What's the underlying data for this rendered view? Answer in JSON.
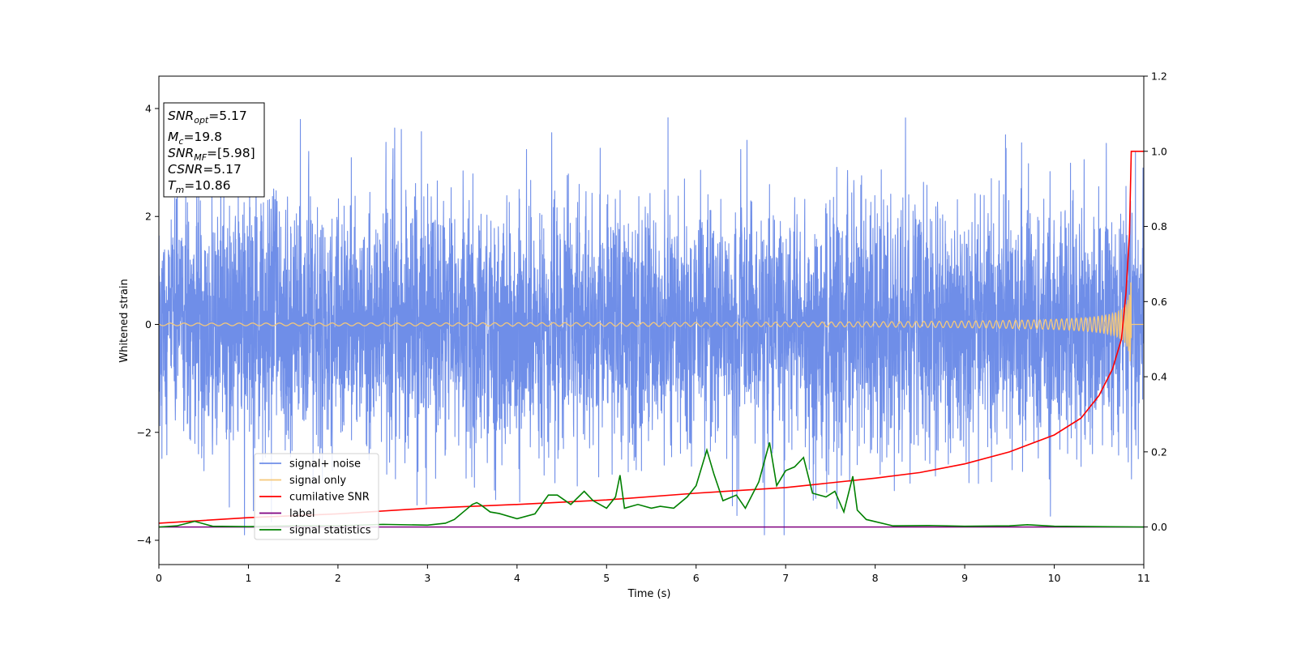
{
  "chart_data": {
    "type": "line",
    "xlabel": "Time (s)",
    "ylabel": "Whitened strain",
    "xlim": [
      0,
      11
    ],
    "ylim_left": [
      -4.45,
      4.6
    ],
    "ylim_right": [
      -0.1,
      1.2
    ],
    "xticks": [
      "0",
      "1",
      "2",
      "3",
      "4",
      "5",
      "6",
      "7",
      "8",
      "9",
      "10",
      "11"
    ],
    "yticks_left": [
      "−4",
      "−2",
      "0",
      "2",
      "4"
    ],
    "yticks_right": [
      "0.0",
      "0.2",
      "0.4",
      "0.6",
      "0.8",
      "1.0",
      "1.2"
    ],
    "annotation": {
      "lines": [
        {
          "main": "SNR",
          "sub": "opt",
          "rest": "=5.17"
        },
        {
          "main": "M",
          "sub": "c",
          "rest": "=19.8"
        },
        {
          "main": "SNR",
          "sub": "MF",
          "rest": "=[5.98]"
        },
        {
          "main": "CSNR",
          "sub": "",
          "rest": "=5.17"
        },
        {
          "main": "T",
          "sub": "m",
          "rest": "=10.86"
        }
      ]
    },
    "legend": {
      "placement": "lower-left",
      "entries": [
        {
          "label": "signal+ noise",
          "color": "#6f8ee8"
        },
        {
          "label": "signal only",
          "color": "#f5c87a"
        },
        {
          "label": "cumilative SNR",
          "color": "#ff0000"
        },
        {
          "label": "label",
          "color": "#800080"
        },
        {
          "label": "signal statistics",
          "color": "#008000"
        }
      ]
    },
    "series": [
      {
        "name": "signal+ noise",
        "axis": "left",
        "color": "#6f8ee8",
        "description": "dense noisy time series, roughly uniform amplitude",
        "typical_range": [
          -2.0,
          2.0
        ],
        "extreme_range": [
          -3.9,
          4.15
        ]
      },
      {
        "name": "signal only",
        "axis": "left",
        "color": "#f5c87a",
        "description": "chirp oscillation growing in amplitude toward merger",
        "peak_time": 10.86,
        "peak_amplitude": 1.0
      },
      {
        "name": "cumilative SNR",
        "axis": "right",
        "color": "#ff0000",
        "x": [
          0,
          1,
          2,
          3,
          4,
          5,
          6,
          7,
          8,
          8.5,
          9,
          9.5,
          10,
          10.3,
          10.5,
          10.65,
          10.75,
          10.8,
          10.84,
          10.86,
          11
        ],
        "y": [
          0.01,
          0.025,
          0.035,
          0.05,
          0.06,
          0.072,
          0.09,
          0.105,
          0.13,
          0.145,
          0.168,
          0.2,
          0.245,
          0.29,
          0.35,
          0.42,
          0.5,
          0.62,
          0.78,
          1.0,
          1.0
        ]
      },
      {
        "name": "label",
        "axis": "right",
        "color": "#800080",
        "x": [
          0,
          11
        ],
        "y": [
          0.0,
          0.0
        ]
      },
      {
        "name": "signal statistics",
        "axis": "right",
        "color": "#008000",
        "x": [
          0,
          0.2,
          0.4,
          0.6,
          1.0,
          1.5,
          2.0,
          2.5,
          3.0,
          3.2,
          3.3,
          3.4,
          3.5,
          3.55,
          3.6,
          3.7,
          3.8,
          4.0,
          4.2,
          4.35,
          4.45,
          4.6,
          4.75,
          4.85,
          5.0,
          5.1,
          5.15,
          5.2,
          5.35,
          5.5,
          5.6,
          5.75,
          5.9,
          6.0,
          6.12,
          6.2,
          6.3,
          6.45,
          6.55,
          6.7,
          6.82,
          6.9,
          7.0,
          7.05,
          7.1,
          7.2,
          7.3,
          7.45,
          7.55,
          7.65,
          7.75,
          7.8,
          7.9,
          8.2,
          8.6,
          9.0,
          9.5,
          9.7,
          10.0,
          10.5,
          11.0
        ],
        "y": [
          0.0,
          0.003,
          0.015,
          0.002,
          0.001,
          0.003,
          0.003,
          0.007,
          0.005,
          0.01,
          0.02,
          0.04,
          0.06,
          0.065,
          0.058,
          0.04,
          0.036,
          0.022,
          0.035,
          0.085,
          0.085,
          0.06,
          0.095,
          0.07,
          0.05,
          0.08,
          0.138,
          0.05,
          0.06,
          0.05,
          0.055,
          0.05,
          0.08,
          0.11,
          0.205,
          0.14,
          0.07,
          0.085,
          0.05,
          0.12,
          0.225,
          0.11,
          0.15,
          0.155,
          0.16,
          0.185,
          0.09,
          0.08,
          0.095,
          0.04,
          0.135,
          0.045,
          0.02,
          0.003,
          0.004,
          0.002,
          0.003,
          0.006,
          0.002,
          0.001,
          0.0
        ]
      }
    ]
  }
}
